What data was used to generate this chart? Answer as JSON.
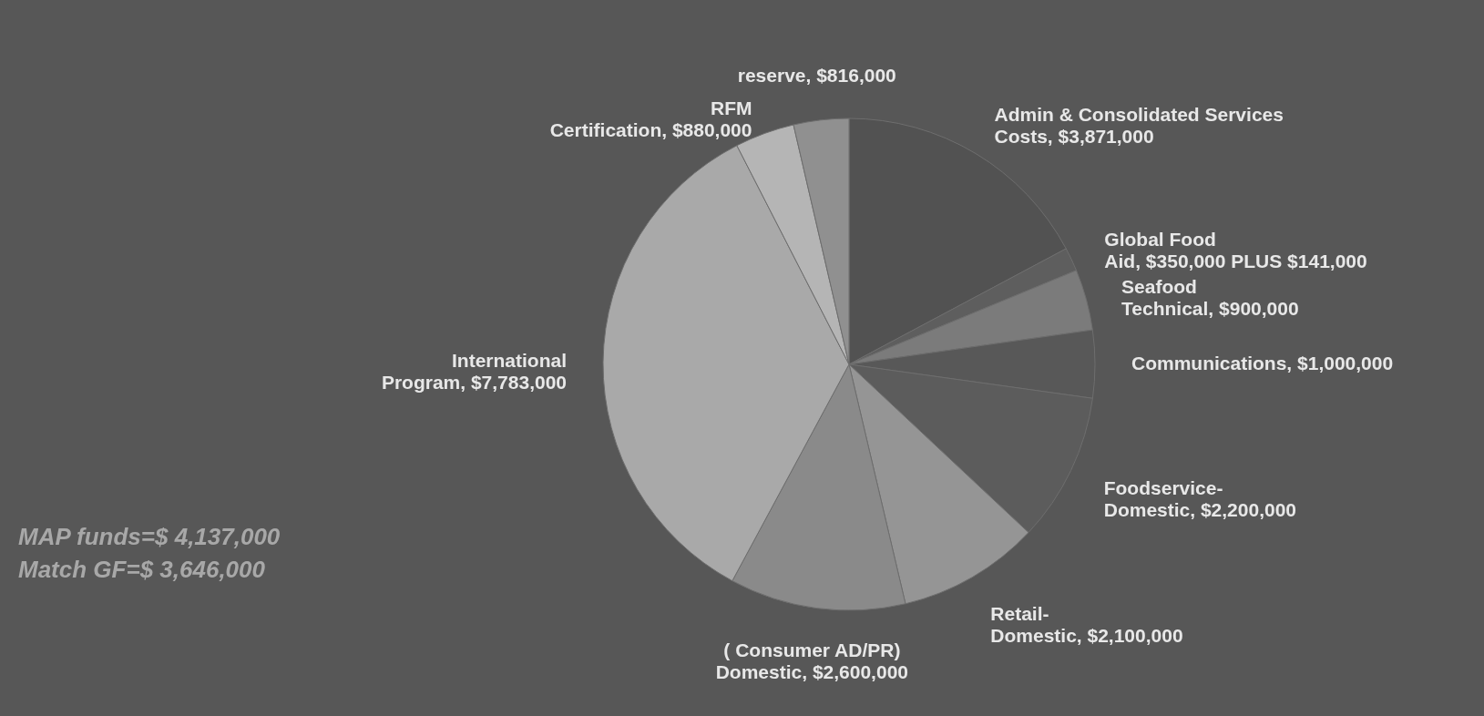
{
  "chart_data": {
    "type": "pie",
    "categories": [
      "Admin & Consolidated Services Costs",
      "Global Food Aid",
      "Seafood Technical",
      "Communications",
      "Foodservice-Domestic",
      "Retail-Domestic",
      "( Consumer AD/PR) Domestic",
      "International Program",
      "RFM Certification",
      "reserve"
    ],
    "values": [
      3871000,
      350000,
      900000,
      1000000,
      2200000,
      2100000,
      2600000,
      7783000,
      880000,
      816000
    ],
    "value_labels": [
      "$3,871,000",
      "$350,000 PLUS $141,000",
      "$900,000",
      "$1,000,000",
      "$2,200,000",
      "$2,100,000",
      "$2,600,000",
      "$7,783,000",
      "$880,000",
      "$816,000"
    ],
    "colors": [
      "#525252",
      "#5e5e5e",
      "#7b7b7b",
      "#585858",
      "#5c5c5c",
      "#959595",
      "#8a8a8a",
      "#a9a9a9",
      "#b5b5b5",
      "#909090"
    ],
    "annotations": [
      "MAP funds=$ 4,137,000",
      "Match GF=$ 3,646,000"
    ]
  }
}
